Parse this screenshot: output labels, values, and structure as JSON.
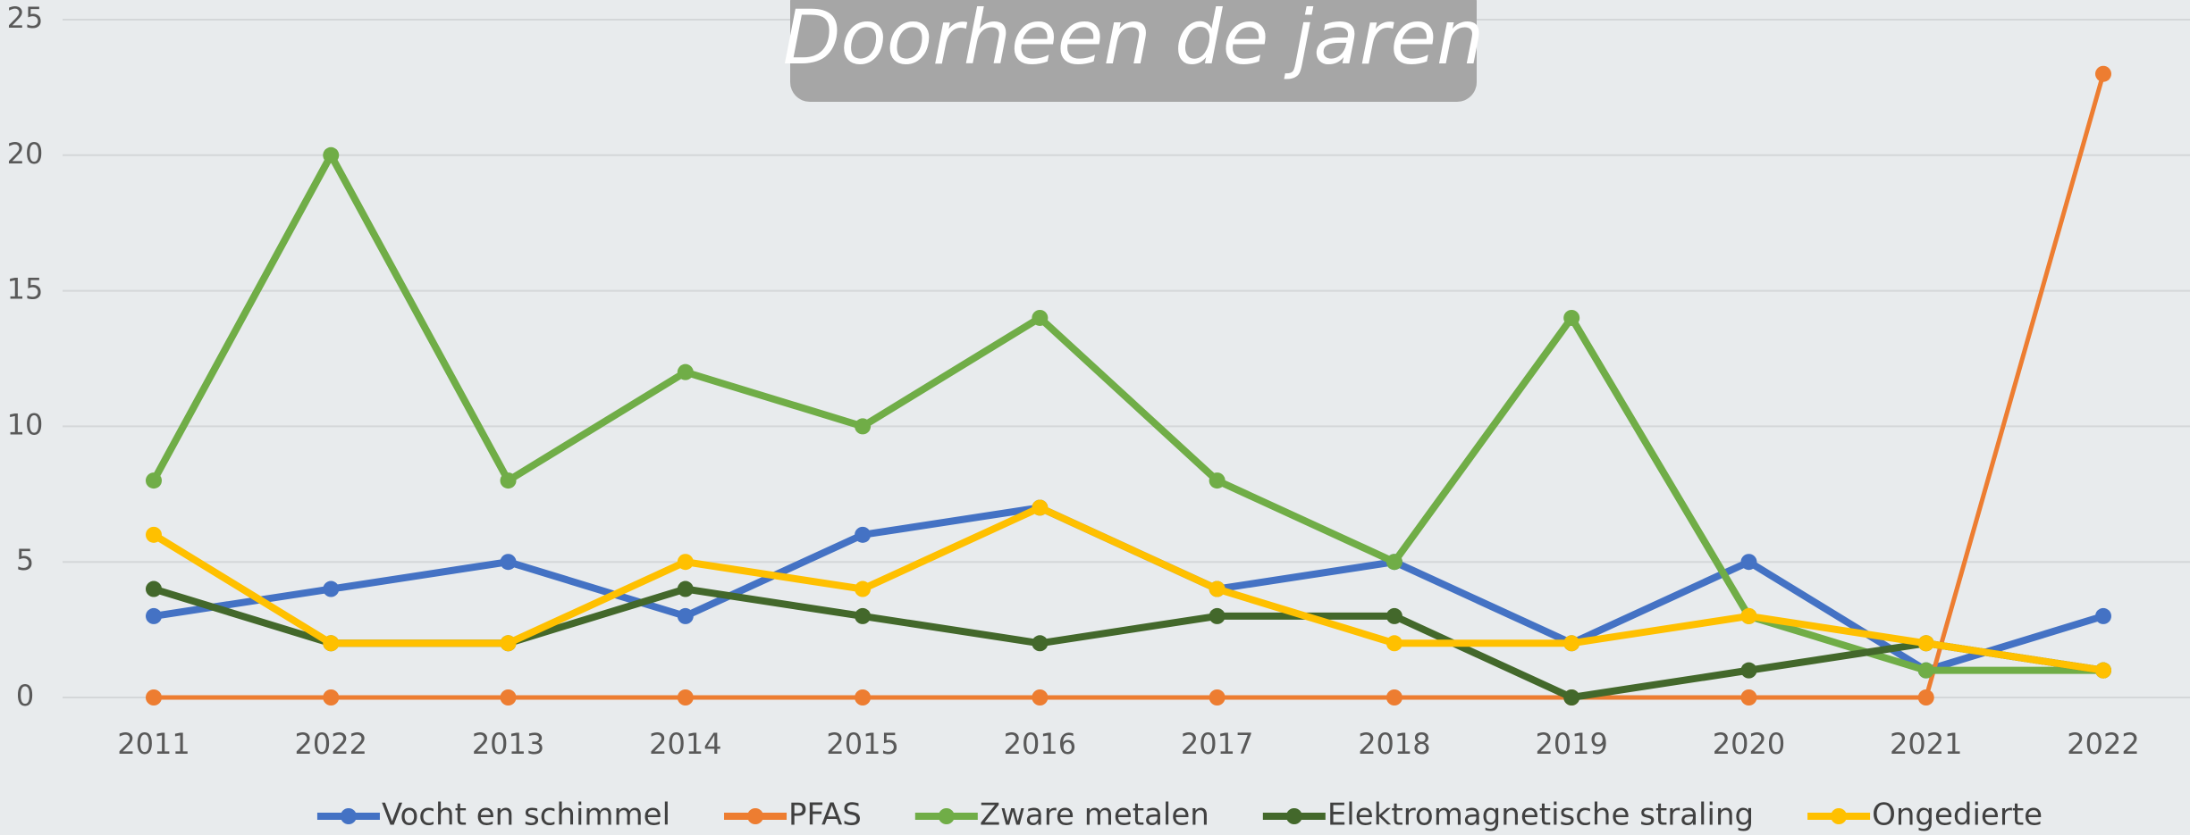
{
  "chart_data": {
    "type": "line",
    "title": "Doorheen de jaren",
    "categories": [
      "2011",
      "2022",
      "2013",
      "2014",
      "2015",
      "2016",
      "2017",
      "2018",
      "2019",
      "2020",
      "2021",
      "2022"
    ],
    "series": [
      {
        "name": "Vocht en schimmel",
        "color": "#4472c4",
        "values": [
          3,
          4,
          5,
          3,
          6,
          7,
          4,
          5,
          2,
          5,
          1,
          3
        ]
      },
      {
        "name": "PFAS",
        "color": "#ed7d31",
        "values": [
          0,
          0,
          0,
          0,
          0,
          0,
          0,
          0,
          0,
          0,
          0,
          23
        ]
      },
      {
        "name": "Zware metalen",
        "color": "#70ad47",
        "values": [
          8,
          20,
          8,
          12,
          10,
          14,
          8,
          5,
          14,
          3,
          1,
          1
        ]
      },
      {
        "name": "Elektromagnetische straling",
        "color": "#43682b",
        "values": [
          4,
          2,
          2,
          4,
          3,
          2,
          3,
          3,
          0,
          1,
          2,
          1
        ]
      },
      {
        "name": "Ongedierte",
        "color": "#ffc000",
        "values": [
          6,
          2,
          2,
          5,
          4,
          7,
          4,
          2,
          2,
          3,
          2,
          1
        ]
      }
    ],
    "ylim": [
      0,
      25
    ],
    "yticks": [
      0,
      5,
      10,
      15,
      20,
      25
    ],
    "grid": true,
    "legend": "bottom"
  }
}
